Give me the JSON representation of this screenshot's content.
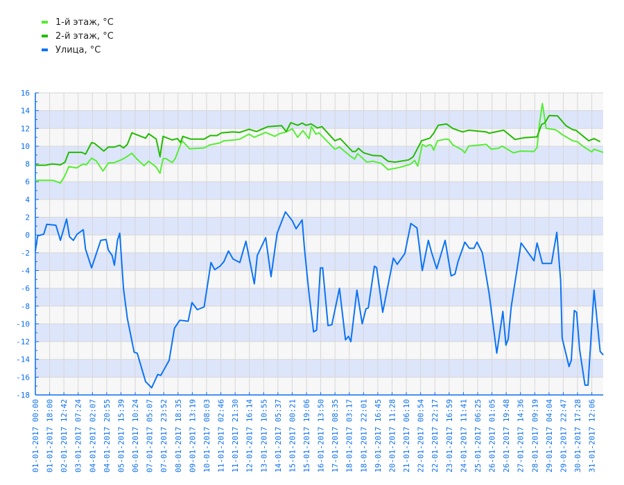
{
  "chart_data": {
    "type": "line",
    "title": "",
    "xlabel": "",
    "ylabel": "",
    "x_unit": "hours since 01-01-2017 00:00",
    "xlim": [
      0,
      747
    ],
    "ylim": [
      -18,
      16
    ],
    "y_ticks": [
      16,
      14,
      12,
      10,
      8,
      6,
      4,
      2,
      0,
      -2,
      -4,
      -6,
      -8,
      -10,
      -12,
      -14,
      -16,
      -18
    ],
    "x_tick_labels": [
      "01-01-2017 00:00",
      "01-01-2017 18:00",
      "02-01-2017 12:42",
      "03-01-2017 07:24",
      "04-01-2017 02:07",
      "04-01-2017 20:55",
      "05-01-2017 15:39",
      "06-01-2017 10:24",
      "07-01-2017 05:07",
      "07-01-2017 23:52",
      "08-01-2017 18:35",
      "09-01-2017 13:19",
      "10-01-2017 08:03",
      "11-01-2017 02:46",
      "11-01-2017 21:30",
      "12-01-2017 16:14",
      "13-01-2017 10:55",
      "14-01-2017 05:37",
      "15-01-2017 00:21",
      "15-01-2017 19:06",
      "16-01-2017 13:50",
      "17-01-2017 08:35",
      "18-01-2017 03:17",
      "18-01-2017 22:01",
      "19-01-2017 16:45",
      "20-01-2017 11:28",
      "21-01-2017 06:10",
      "22-01-2017 00:54",
      "22-01-2017 22:17",
      "23-01-2017 16:59",
      "24-01-2017 11:41",
      "25-01-2017 06:25",
      "26-01-2017 01:05",
      "26-01-2017 19:48",
      "27-01-2017 14:36",
      "28-01-2017 09:19",
      "29-01-2017 04:04",
      "29-01-2017 22:47",
      "30-01-2017 17:28",
      "31-01-2017 12:06"
    ],
    "x_tick_step_hours": 18.77,
    "grid": true,
    "legend_position": "top-left",
    "series": [
      {
        "name": "1-й этаж, °C",
        "color": "#55ee33",
        "points": [
          [
            0,
            6.15
          ],
          [
            23,
            6.15
          ],
          [
            33,
            5.85
          ],
          [
            39,
            6.7
          ],
          [
            44,
            7.7
          ],
          [
            54,
            7.55
          ],
          [
            63,
            8.0
          ],
          [
            67,
            7.9
          ],
          [
            74,
            8.65
          ],
          [
            80,
            8.35
          ],
          [
            89,
            7.2
          ],
          [
            96,
            8.1
          ],
          [
            104,
            8.15
          ],
          [
            114,
            8.5
          ],
          [
            119,
            8.75
          ],
          [
            127,
            9.2
          ],
          [
            133,
            8.6
          ],
          [
            143,
            7.8
          ],
          [
            149,
            8.3
          ],
          [
            159,
            7.65
          ],
          [
            164,
            6.95
          ],
          [
            168,
            8.6
          ],
          [
            172,
            8.6
          ],
          [
            180,
            8.15
          ],
          [
            184,
            8.6
          ],
          [
            193,
            10.6
          ],
          [
            203,
            9.7
          ],
          [
            222,
            9.8
          ],
          [
            230,
            10.15
          ],
          [
            242,
            10.35
          ],
          [
            248,
            10.6
          ],
          [
            262,
            10.7
          ],
          [
            269,
            10.8
          ],
          [
            281,
            11.35
          ],
          [
            288,
            11.0
          ],
          [
            303,
            11.55
          ],
          [
            315,
            11.1
          ],
          [
            321,
            11.4
          ],
          [
            330,
            11.6
          ],
          [
            338,
            11.95
          ],
          [
            345,
            11.0
          ],
          [
            352,
            11.75
          ],
          [
            360,
            10.85
          ],
          [
            363,
            12.2
          ],
          [
            369,
            11.35
          ],
          [
            373,
            11.5
          ],
          [
            385,
            10.45
          ],
          [
            394,
            9.65
          ],
          [
            400,
            9.9
          ],
          [
            414,
            8.9
          ],
          [
            420,
            8.55
          ],
          [
            424,
            9.15
          ],
          [
            436,
            8.2
          ],
          [
            444,
            8.3
          ],
          [
            455,
            8.05
          ],
          [
            464,
            7.35
          ],
          [
            479,
            7.6
          ],
          [
            493,
            7.95
          ],
          [
            499,
            8.4
          ],
          [
            503,
            7.75
          ],
          [
            509,
            10.2
          ],
          [
            514,
            9.95
          ],
          [
            518,
            10.15
          ],
          [
            521,
            10.1
          ],
          [
            524,
            9.55
          ],
          [
            529,
            10.6
          ],
          [
            540,
            10.8
          ],
          [
            544,
            10.75
          ],
          [
            549,
            10.15
          ],
          [
            561,
            9.6
          ],
          [
            565,
            9.25
          ],
          [
            570,
            10.0
          ],
          [
            593,
            10.2
          ],
          [
            600,
            9.65
          ],
          [
            609,
            9.75
          ],
          [
            614,
            10.0
          ],
          [
            629,
            9.25
          ],
          [
            638,
            9.45
          ],
          [
            656,
            9.4
          ],
          [
            660,
            9.85
          ],
          [
            663,
            12.4
          ],
          [
            667,
            14.8
          ],
          [
            672,
            12.0
          ],
          [
            684,
            11.85
          ],
          [
            688,
            11.65
          ],
          [
            693,
            11.3
          ],
          [
            707,
            10.6
          ],
          [
            713,
            10.5
          ],
          [
            720,
            10.0
          ],
          [
            732,
            9.35
          ],
          [
            735,
            9.65
          ],
          [
            747,
            9.3
          ]
        ]
      },
      {
        "name": "2-й этаж, °C",
        "color": "#22bb00",
        "points": [
          [
            0,
            7.85
          ],
          [
            13,
            7.85
          ],
          [
            22,
            8.0
          ],
          [
            33,
            7.9
          ],
          [
            39,
            8.2
          ],
          [
            44,
            9.3
          ],
          [
            61,
            9.3
          ],
          [
            66,
            9.1
          ],
          [
            74,
            10.4
          ],
          [
            78,
            10.3
          ],
          [
            90,
            9.45
          ],
          [
            96,
            9.9
          ],
          [
            104,
            9.9
          ],
          [
            111,
            10.1
          ],
          [
            116,
            9.8
          ],
          [
            121,
            10.2
          ],
          [
            127,
            11.5
          ],
          [
            136,
            11.2
          ],
          [
            145,
            10.9
          ],
          [
            149,
            11.4
          ],
          [
            159,
            10.8
          ],
          [
            164,
            8.8
          ],
          [
            168,
            11.1
          ],
          [
            180,
            10.7
          ],
          [
            187,
            10.85
          ],
          [
            191,
            10.4
          ],
          [
            194,
            11.1
          ],
          [
            204,
            10.8
          ],
          [
            222,
            10.8
          ],
          [
            230,
            11.2
          ],
          [
            239,
            11.2
          ],
          [
            245,
            11.5
          ],
          [
            260,
            11.6
          ],
          [
            269,
            11.55
          ],
          [
            281,
            11.9
          ],
          [
            291,
            11.65
          ],
          [
            306,
            12.2
          ],
          [
            324,
            12.3
          ],
          [
            330,
            11.65
          ],
          [
            336,
            12.65
          ],
          [
            345,
            12.35
          ],
          [
            351,
            12.6
          ],
          [
            356,
            12.35
          ],
          [
            363,
            12.5
          ],
          [
            371,
            12.05
          ],
          [
            377,
            12.2
          ],
          [
            394,
            10.6
          ],
          [
            401,
            10.85
          ],
          [
            417,
            9.4
          ],
          [
            421,
            9.4
          ],
          [
            425,
            9.75
          ],
          [
            432,
            9.25
          ],
          [
            444,
            8.95
          ],
          [
            455,
            8.9
          ],
          [
            464,
            8.3
          ],
          [
            473,
            8.2
          ],
          [
            491,
            8.45
          ],
          [
            497,
            8.8
          ],
          [
            508,
            10.6
          ],
          [
            519,
            10.9
          ],
          [
            524,
            11.45
          ],
          [
            530,
            12.35
          ],
          [
            541,
            12.5
          ],
          [
            549,
            12.0
          ],
          [
            562,
            11.6
          ],
          [
            570,
            11.8
          ],
          [
            593,
            11.6
          ],
          [
            597,
            11.45
          ],
          [
            616,
            11.8
          ],
          [
            631,
            10.75
          ],
          [
            643,
            10.95
          ],
          [
            660,
            11.05
          ],
          [
            666,
            12.45
          ],
          [
            670,
            12.6
          ],
          [
            676,
            13.45
          ],
          [
            687,
            13.4
          ],
          [
            698,
            12.3
          ],
          [
            707,
            11.85
          ],
          [
            711,
            11.8
          ],
          [
            728,
            10.6
          ],
          [
            735,
            10.85
          ],
          [
            743,
            10.5
          ]
        ]
      },
      {
        "name": "Улица, °C",
        "color": "#0a73f5",
        "points": [
          [
            0,
            -1.8
          ],
          [
            3,
            -0.1
          ],
          [
            11,
            0.1
          ],
          [
            15,
            1.2
          ],
          [
            27,
            1.1
          ],
          [
            33,
            -0.6
          ],
          [
            41,
            1.8
          ],
          [
            45,
            -0.2
          ],
          [
            50,
            -0.6
          ],
          [
            55,
            0.1
          ],
          [
            63,
            0.6
          ],
          [
            66,
            -1.6
          ],
          [
            74,
            -3.7
          ],
          [
            86,
            -0.6
          ],
          [
            93,
            -0.5
          ],
          [
            96,
            -1.7
          ],
          [
            101,
            -2.3
          ],
          [
            104,
            -3.4
          ],
          [
            108,
            -0.6
          ],
          [
            111,
            0.2
          ],
          [
            116,
            -6.1
          ],
          [
            121,
            -9.4
          ],
          [
            130,
            -13.2
          ],
          [
            134,
            -13.3
          ],
          [
            145,
            -16.5
          ],
          [
            153,
            -17.2
          ],
          [
            161,
            -15.7
          ],
          [
            165,
            -15.8
          ],
          [
            176,
            -14.1
          ],
          [
            183,
            -10.5
          ],
          [
            190,
            -9.6
          ],
          [
            201,
            -9.7
          ],
          [
            206,
            -7.6
          ],
          [
            213,
            -8.4
          ],
          [
            222,
            -8.1
          ],
          [
            231,
            -3.1
          ],
          [
            236,
            -3.9
          ],
          [
            243,
            -3.5
          ],
          [
            248,
            -3.0
          ],
          [
            254,
            -1.8
          ],
          [
            260,
            -2.7
          ],
          [
            269,
            -3.1
          ],
          [
            277,
            -0.7
          ],
          [
            288,
            -5.5
          ],
          [
            292,
            -2.3
          ],
          [
            303,
            -0.3
          ],
          [
            310,
            -4.7
          ],
          [
            318,
            0.2
          ],
          [
            329,
            2.6
          ],
          [
            338,
            1.6
          ],
          [
            343,
            0.7
          ],
          [
            351,
            1.7
          ],
          [
            354,
            -1.5
          ],
          [
            360,
            -6.6
          ],
          [
            366,
            -10.9
          ],
          [
            370,
            -10.7
          ],
          [
            375,
            -3.7
          ],
          [
            378,
            -3.7
          ],
          [
            385,
            -10.2
          ],
          [
            390,
            -10.1
          ],
          [
            400,
            -6.0
          ],
          [
            408,
            -11.8
          ],
          [
            412,
            -11.4
          ],
          [
            415,
            -12.0
          ],
          [
            423,
            -6.2
          ],
          [
            430,
            -10.0
          ],
          [
            435,
            -8.3
          ],
          [
            438,
            -8.2
          ],
          [
            446,
            -3.5
          ],
          [
            449,
            -3.7
          ],
          [
            457,
            -8.7
          ],
          [
            471,
            -2.6
          ],
          [
            476,
            -3.3
          ],
          [
            486,
            -2.1
          ],
          [
            494,
            1.3
          ],
          [
            502,
            0.8
          ],
          [
            509,
            -4.0
          ],
          [
            517,
            -0.6
          ],
          [
            521,
            -1.9
          ],
          [
            528,
            -3.8
          ],
          [
            539,
            -0.6
          ],
          [
            547,
            -4.6
          ],
          [
            552,
            -4.4
          ],
          [
            556,
            -3.0
          ],
          [
            565,
            -0.8
          ],
          [
            571,
            -1.5
          ],
          [
            577,
            -1.5
          ],
          [
            581,
            -0.8
          ],
          [
            588,
            -2.0
          ],
          [
            597,
            -6.6
          ],
          [
            607,
            -13.3
          ],
          [
            615,
            -8.6
          ],
          [
            619,
            -12.4
          ],
          [
            622,
            -11.7
          ],
          [
            626,
            -8.1
          ],
          [
            639,
            -0.9
          ],
          [
            645,
            -1.6
          ],
          [
            656,
            -2.9
          ],
          [
            660,
            -0.9
          ],
          [
            667,
            -3.2
          ],
          [
            679,
            -3.2
          ],
          [
            686,
            0.3
          ],
          [
            691,
            -5.1
          ],
          [
            693,
            -11.6
          ],
          [
            702,
            -14.8
          ],
          [
            705,
            -14.1
          ],
          [
            709,
            -8.5
          ],
          [
            712,
            -8.7
          ],
          [
            716,
            -12.9
          ],
          [
            723,
            -16.9
          ],
          [
            727,
            -16.9
          ],
          [
            735,
            -6.2
          ],
          [
            743,
            -13.1
          ],
          [
            747,
            -13.5
          ]
        ]
      }
    ]
  }
}
